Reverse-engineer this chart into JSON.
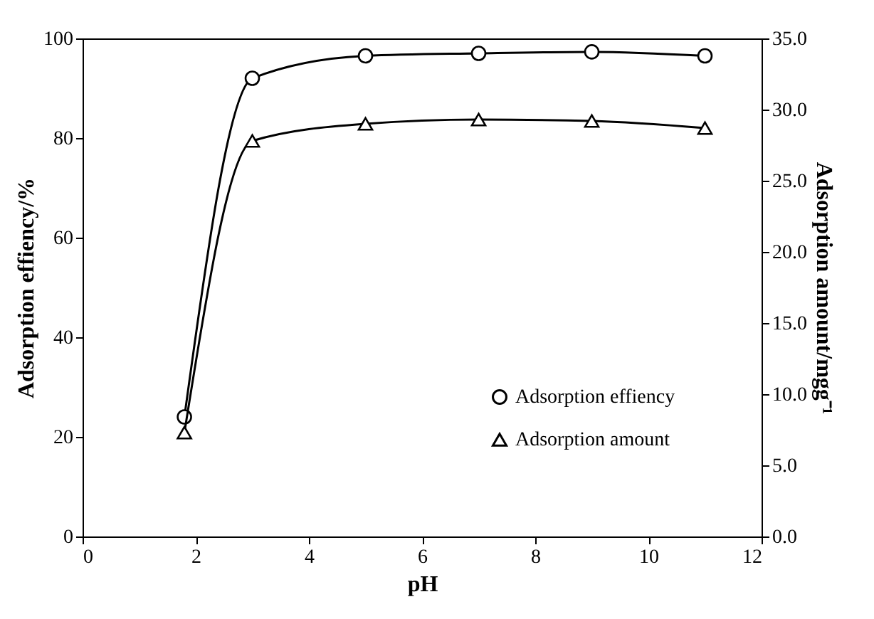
{
  "chart_data": {
    "type": "line",
    "xlabel": "pH",
    "ylabel": "Adsorption effiency/%",
    "y2label": "Adsorption amount/mgg⁻¹",
    "xlim": [
      0,
      12
    ],
    "xticks": [
      0,
      2,
      4,
      6,
      8,
      10,
      12
    ],
    "ylim": [
      0,
      100
    ],
    "yticks": [
      0,
      20,
      40,
      60,
      80,
      100
    ],
    "y2lim": [
      0,
      35
    ],
    "y2ticks": [
      {
        "value": 0,
        "label": "0.0"
      },
      {
        "value": 5,
        "label": "5.0"
      },
      {
        "value": 10,
        "label": "10.0"
      },
      {
        "value": 15,
        "label": "15.0"
      },
      {
        "value": 20,
        "label": "20.0"
      },
      {
        "value": 25,
        "label": "25.0"
      },
      {
        "value": 30,
        "label": "30.0"
      },
      {
        "value": 35,
        "label": "35.0"
      }
    ],
    "x": [
      1.8,
      3,
      5,
      7,
      9,
      11
    ],
    "legend": "bottom right",
    "grid": false,
    "line_style": "solid",
    "series": [
      {
        "name": "Adsorption effiency",
        "color": "#000000",
        "marker": "circle",
        "values": [
          24,
          92,
          96.5,
          97,
          97.3,
          96.5
        ]
      },
      {
        "name": "Adsorption amount",
        "color": "#000000",
        "marker": "triangle",
        "axis": "y2",
        "values": [
          7.3,
          27.8,
          29.0,
          29.3,
          29.2,
          28.7
        ]
      }
    ]
  }
}
